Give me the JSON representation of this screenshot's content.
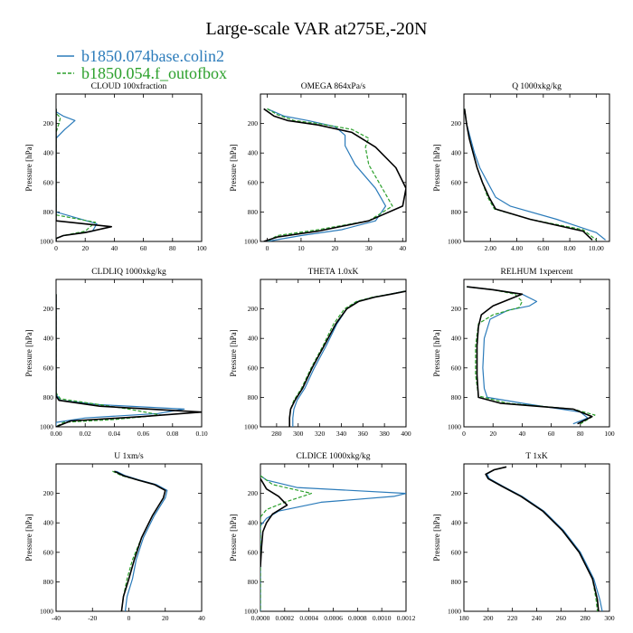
{
  "figure": {
    "title": "Large-scale VAR at275E,-20N",
    "legend": [
      {
        "label": "b1850.074base.colin2",
        "color": "#2b7bba",
        "dash": "solid"
      },
      {
        "label": "b1850.054.f_outofbox",
        "color": "#2ca02c",
        "dash": "dashed"
      }
    ],
    "extra_series": {
      "color": "#000000",
      "dash": "solid"
    },
    "ylabel": "Pressure [hPa]",
    "yticks": [
      200,
      400,
      600,
      800,
      1000
    ],
    "ylim": [
      0,
      1000
    ]
  },
  "chart_data": [
    {
      "type": "line",
      "title": "CLOUD  100xfraction",
      "xlim": [
        0,
        100
      ],
      "xticks": [
        0,
        20,
        40,
        60,
        80,
        100
      ],
      "xticklabels": [
        "0",
        "20",
        "40",
        "60",
        "80",
        "100"
      ],
      "ylim": [
        0,
        1000
      ],
      "ylabel": "Pressure [hPa]",
      "series": [
        {
          "name": "b1850.074base.colin2",
          "color": "#2b7bba",
          "x": [
            0,
            0,
            5,
            13,
            6,
            0,
            0,
            0,
            0,
            28,
            25,
            5,
            0,
            0
          ],
          "y": [
            100,
            120,
            150,
            180,
            240,
            300,
            360,
            500,
            800,
            880,
            930,
            960,
            980,
            1000
          ]
        },
        {
          "name": "b1850.054.f_outofbox",
          "color": "#2ca02c",
          "x": [
            0,
            0,
            3,
            2,
            0,
            0,
            0,
            0,
            27,
            20,
            5,
            0,
            0
          ],
          "y": [
            100,
            130,
            160,
            200,
            260,
            400,
            780,
            820,
            870,
            930,
            960,
            980,
            1000
          ]
        },
        {
          "color": "#000000",
          "x": [
            0,
            0,
            0,
            0,
            0,
            38,
            20,
            5,
            0,
            0
          ],
          "y": [
            100,
            400,
            790,
            820,
            860,
            900,
            940,
            960,
            980,
            1000
          ]
        }
      ]
    },
    {
      "type": "line",
      "title": "OMEGA  864xPa/s",
      "xlim": [
        -2,
        41
      ],
      "xticks": [
        0,
        10,
        20,
        30,
        40
      ],
      "xticklabels": [
        "0",
        "10",
        "20",
        "30",
        "40"
      ],
      "ylim": [
        0,
        1000
      ],
      "ylabel": "Pressure [hPa]",
      "series": [
        {
          "name": "b1850.074base.colin2",
          "color": "#2b7bba",
          "x": [
            0,
            2,
            5,
            12,
            20,
            23,
            23,
            26,
            32,
            35,
            32,
            22,
            10,
            0
          ],
          "y": [
            100,
            120,
            150,
            180,
            220,
            280,
            350,
            480,
            640,
            760,
            860,
            920,
            960,
            1000
          ]
        },
        {
          "name": "b1850.054.f_outofbox",
          "color": "#2ca02c",
          "x": [
            0,
            3,
            8,
            15,
            25,
            30,
            29,
            30,
            34,
            37,
            30,
            15,
            3,
            0
          ],
          "y": [
            100,
            140,
            180,
            200,
            240,
            300,
            360,
            480,
            640,
            760,
            860,
            920,
            960,
            1000
          ]
        },
        {
          "color": "#000000",
          "x": [
            -1,
            2,
            6,
            15,
            25,
            32,
            38,
            41,
            40,
            30,
            15,
            3,
            -1
          ],
          "y": [
            100,
            150,
            180,
            210,
            260,
            360,
            500,
            640,
            760,
            860,
            930,
            970,
            1000
          ]
        }
      ]
    },
    {
      "type": "line",
      "title": "Q  1000xkg/kg",
      "xlim": [
        0,
        11
      ],
      "xticks": [
        2,
        4,
        6,
        8,
        10
      ],
      "xticklabels": [
        "2.00",
        "4.00",
        "6.00",
        "8.00",
        "10.00"
      ],
      "ylim": [
        0,
        1000
      ],
      "ylabel": "Pressure [hPa]",
      "series": [
        {
          "name": "b1850.074base.colin2",
          "color": "#2b7bba",
          "x": [
            0.05,
            0.2,
            0.5,
            0.8,
            1.2,
            1.8,
            2.4,
            3.5,
            7.0,
            10.0,
            10.7
          ],
          "y": [
            100,
            200,
            300,
            400,
            500,
            600,
            700,
            760,
            850,
            940,
            990
          ]
        },
        {
          "name": "b1850.054.f_outofbox",
          "color": "#2ca02c",
          "x": [
            0.05,
            0.2,
            0.4,
            0.7,
            1.0,
            1.4,
            1.8,
            2.3,
            5.0,
            9.0,
            10.0
          ],
          "y": [
            100,
            200,
            300,
            400,
            500,
            600,
            700,
            780,
            850,
            920,
            990
          ]
        },
        {
          "color": "#000000",
          "x": [
            0.05,
            0.2,
            0.4,
            0.7,
            1.0,
            1.4,
            1.9,
            2.4,
            5.0,
            9.0,
            9.7
          ],
          "y": [
            100,
            200,
            300,
            400,
            500,
            600,
            700,
            780,
            850,
            930,
            990
          ]
        }
      ]
    },
    {
      "type": "line",
      "title": "CLDLIQ  1000xkg/kg",
      "xlim": [
        0,
        0.1
      ],
      "xticks": [
        0,
        0.02,
        0.04,
        0.06,
        0.08,
        0.1
      ],
      "xticklabels": [
        "0.00",
        "0.02",
        "0.04",
        "0.06",
        "0.08",
        "0.10"
      ],
      "ylim": [
        0,
        1000
      ],
      "ylabel": "Pressure [hPa]",
      "series": [
        {
          "name": "b1850.074base.colin2",
          "color": "#2b7bba",
          "x": [
            0,
            0,
            0.003,
            0.03,
            0.088,
            0.07,
            0.02,
            0,
            0
          ],
          "y": [
            100,
            780,
            820,
            850,
            880,
            910,
            940,
            970,
            1000
          ]
        },
        {
          "name": "b1850.054.f_outofbox",
          "color": "#2ca02c",
          "x": [
            0,
            0,
            0.003,
            0.03,
            0.05,
            0.072,
            0.04,
            0.005,
            0
          ],
          "y": [
            100,
            770,
            810,
            850,
            880,
            920,
            950,
            970,
            1000
          ]
        },
        {
          "color": "#000000",
          "x": [
            0,
            0,
            0.002,
            0.03,
            0.1,
            0.06,
            0.01,
            0
          ],
          "y": [
            100,
            790,
            820,
            860,
            900,
            930,
            960,
            1000
          ]
        }
      ]
    },
    {
      "type": "line",
      "title": "THETA  1.0xK",
      "xlim": [
        265,
        400
      ],
      "xticks": [
        280,
        300,
        320,
        340,
        360,
        380,
        400
      ],
      "xticklabels": [
        "280",
        "300",
        "320",
        "340",
        "360",
        "380",
        "400"
      ],
      "ylim": [
        0,
        1000
      ],
      "ylabel": "Pressure [hPa]",
      "series": [
        {
          "name": "b1850.074base.colin2",
          "color": "#2b7bba",
          "x": [
            399,
            385,
            370,
            355,
            345,
            336,
            326,
            315,
            306,
            299,
            296,
            295,
            295
          ],
          "y": [
            80,
            100,
            120,
            150,
            200,
            300,
            450,
            600,
            740,
            820,
            880,
            940,
            1000
          ]
        },
        {
          "name": "b1850.054.f_outofbox",
          "color": "#2ca02c",
          "x": [
            399,
            385,
            369,
            354,
            343,
            333,
            323,
            312,
            303,
            296,
            293,
            292,
            292
          ],
          "y": [
            80,
            100,
            120,
            150,
            200,
            300,
            450,
            600,
            740,
            820,
            880,
            940,
            1000
          ]
        },
        {
          "color": "#000000",
          "x": [
            400,
            386,
            371,
            356,
            345,
            335,
            324,
            313,
            304,
            297,
            293,
            292,
            292
          ],
          "y": [
            80,
            100,
            120,
            150,
            200,
            300,
            450,
            600,
            740,
            820,
            880,
            940,
            1000
          ]
        }
      ]
    },
    {
      "type": "line",
      "title": "RELHUM  1xpercent",
      "xlim": [
        0,
        100
      ],
      "xticks": [
        0,
        20,
        40,
        60,
        80,
        100
      ],
      "xticklabels": [
        "0",
        "20",
        "40",
        "60",
        "80",
        "100"
      ],
      "ylim": [
        0,
        1000
      ],
      "ylabel": "Pressure [hPa]",
      "series": [
        {
          "name": "b1850.074base.colin2",
          "color": "#2b7bba",
          "x": [
            2,
            20,
            40,
            50,
            45,
            30,
            18,
            14,
            13,
            14,
            16,
            40,
            80,
            85,
            75
          ],
          "y": [
            50,
            70,
            100,
            150,
            180,
            210,
            270,
            400,
            600,
            740,
            800,
            840,
            900,
            940,
            980
          ]
        },
        {
          "name": "b1850.054.f_outofbox",
          "color": "#2ca02c",
          "x": [
            2,
            20,
            35,
            40,
            38,
            20,
            10,
            8,
            8,
            10,
            30,
            75,
            90,
            80
          ],
          "y": [
            50,
            70,
            100,
            150,
            190,
            240,
            300,
            450,
            650,
            790,
            840,
            880,
            920,
            980
          ]
        },
        {
          "color": "#000000",
          "x": [
            2,
            20,
            40,
            30,
            20,
            12,
            10,
            9,
            9,
            10,
            25,
            75,
            88,
            78
          ],
          "y": [
            50,
            70,
            100,
            140,
            180,
            240,
            320,
            450,
            650,
            800,
            840,
            880,
            930,
            980
          ]
        }
      ]
    },
    {
      "type": "line",
      "title": "U  1xm/s",
      "xlim": [
        -40,
        40
      ],
      "xticks": [
        -40,
        -20,
        0,
        20,
        40
      ],
      "xticklabels": [
        "-40",
        "-20",
        "0",
        "20",
        "40"
      ],
      "ylim": [
        0,
        1000
      ],
      "ylabel": "Pressure [hPa]",
      "series": [
        {
          "name": "b1850.074base.colin2",
          "color": "#2b7bba",
          "x": [
            -7,
            -2,
            6,
            15,
            21,
            20,
            14,
            8,
            4,
            2,
            -1,
            -2
          ],
          "y": [
            50,
            80,
            110,
            140,
            180,
            230,
            350,
            500,
            650,
            780,
            900,
            1000
          ]
        },
        {
          "name": "b1850.054.f_outofbox",
          "color": "#2ca02c",
          "x": [
            -9,
            -4,
            5,
            14,
            20,
            19,
            13,
            7,
            2,
            -1,
            -3,
            -4
          ],
          "y": [
            50,
            80,
            110,
            140,
            180,
            230,
            350,
            500,
            650,
            780,
            900,
            1000
          ]
        },
        {
          "color": "#000000",
          "x": [
            -8,
            -3,
            5,
            14,
            20,
            19,
            13,
            7,
            3,
            0,
            -3,
            -4
          ],
          "y": [
            50,
            80,
            110,
            140,
            180,
            230,
            350,
            500,
            650,
            780,
            900,
            1000
          ]
        }
      ]
    },
    {
      "type": "line",
      "title": "CLDICE  1000xkg/kg",
      "xlim": [
        0,
        0.0012
      ],
      "xticks": [
        0,
        0.0002,
        0.0004,
        0.0006,
        0.0008,
        0.001,
        0.0012
      ],
      "xticklabels": [
        "0.0000",
        "0.0002",
        "0.0004",
        "0.0006",
        "0.0008",
        "0.0010",
        "0.0012"
      ],
      "ylim": [
        0,
        1000
      ],
      "ylabel": "Pressure [hPa]",
      "series": [
        {
          "name": "b1850.074base.colin2",
          "color": "#2b7bba",
          "x": [
            0,
            5e-05,
            0.0003,
            0.0012,
            0.0011,
            0.0005,
            0.00015,
            5e-05,
            0,
            0
          ],
          "y": [
            80,
            110,
            160,
            200,
            220,
            260,
            320,
            370,
            420,
            1000
          ]
        },
        {
          "name": "b1850.054.f_outofbox",
          "color": "#2ca02c",
          "x": [
            0,
            0.0001,
            0.00042,
            0.0002,
            5e-05,
            0,
            0,
            0
          ],
          "y": [
            80,
            140,
            200,
            260,
            310,
            360,
            400,
            1000
          ]
        },
        {
          "color": "#000000",
          "x": [
            0,
            5e-05,
            0.00015,
            0.00022,
            0.0001,
            5e-05,
            2e-05,
            1e-05,
            0
          ],
          "y": [
            100,
            170,
            220,
            280,
            340,
            400,
            460,
            560,
            700
          ]
        }
      ]
    },
    {
      "type": "line",
      "title": "T  1xK",
      "xlim": [
        180,
        300
      ],
      "xticks": [
        180,
        200,
        220,
        240,
        260,
        280,
        300
      ],
      "xticklabels": [
        "180",
        "200",
        "220",
        "240",
        "260",
        "280",
        "300"
      ],
      "ylim": [
        0,
        1000
      ],
      "ylabel": "Pressure [hPa]",
      "series": [
        {
          "name": "b1850.074base.colin2",
          "color": "#2b7bba",
          "x": [
            215,
            205,
            199,
            201,
            212,
            228,
            246,
            262,
            276,
            287,
            292,
            294
          ],
          "y": [
            20,
            40,
            70,
            100,
            150,
            220,
            320,
            450,
            600,
            780,
            920,
            1000
          ]
        },
        {
          "name": "b1850.054.f_outofbox",
          "color": "#2ca02c",
          "x": [
            215,
            205,
            198,
            200,
            211,
            227,
            245,
            261,
            275,
            286,
            289,
            290
          ],
          "y": [
            20,
            40,
            70,
            100,
            150,
            220,
            320,
            450,
            600,
            780,
            920,
            1000
          ]
        },
        {
          "color": "#000000",
          "x": [
            215,
            205,
            198,
            200,
            211,
            227,
            245,
            261,
            275,
            286,
            290,
            291
          ],
          "y": [
            20,
            40,
            70,
            100,
            150,
            220,
            320,
            450,
            600,
            780,
            920,
            1000
          ]
        }
      ]
    }
  ]
}
